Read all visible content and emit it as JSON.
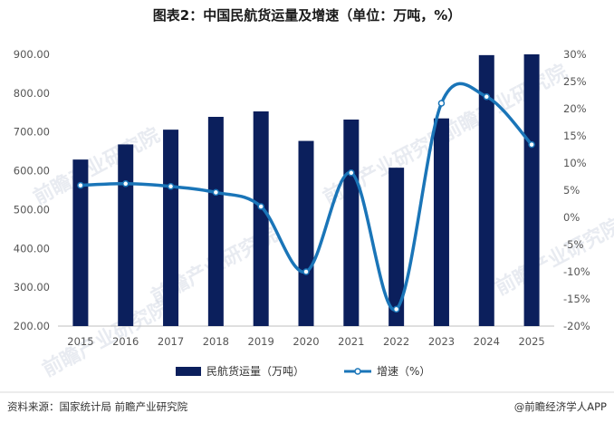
{
  "chart_data": {
    "type": "bar",
    "title": "图表2：中国民航货运量及增速（单位：万吨，%）",
    "categories": [
      "2015",
      "2016",
      "2017",
      "2018",
      "2019",
      "2020",
      "2021",
      "2022",
      "2023",
      "2024",
      "2025"
    ],
    "series": [
      {
        "name": "民航货运量（万吨）",
        "type": "bar",
        "axis": "left",
        "color": "#0b1f5c",
        "values": [
          629,
          668,
          706,
          739,
          753,
          677,
          732,
          608,
          735,
          898,
          900
        ]
      },
      {
        "name": "增速（%）",
        "type": "line",
        "axis": "right",
        "color": "#1a75b8",
        "values": [
          5.9,
          6.2,
          5.7,
          4.6,
          2.0,
          -10.0,
          8.2,
          -16.9,
          21.0,
          22.2,
          13.4
        ]
      }
    ],
    "ylim_left": [
      200,
      900
    ],
    "yticks_left": [
      "900.00",
      "800.00",
      "700.00",
      "600.00",
      "500.00",
      "400.00",
      "300.00",
      "200.00"
    ],
    "ylim_right": [
      -20,
      30
    ],
    "yticks_right": [
      "30%",
      "25%",
      "20%",
      "15%",
      "10%",
      "5%",
      "0%",
      "-5%",
      "-10%",
      "-15%",
      "-20%"
    ],
    "grid": false,
    "legend_position": "bottom"
  },
  "footer": {
    "source": "资料来源：国家统计局 前瞻产业研究院",
    "brand": "@前瞻经济学人APP"
  },
  "watermark": "前瞻产业研究院"
}
